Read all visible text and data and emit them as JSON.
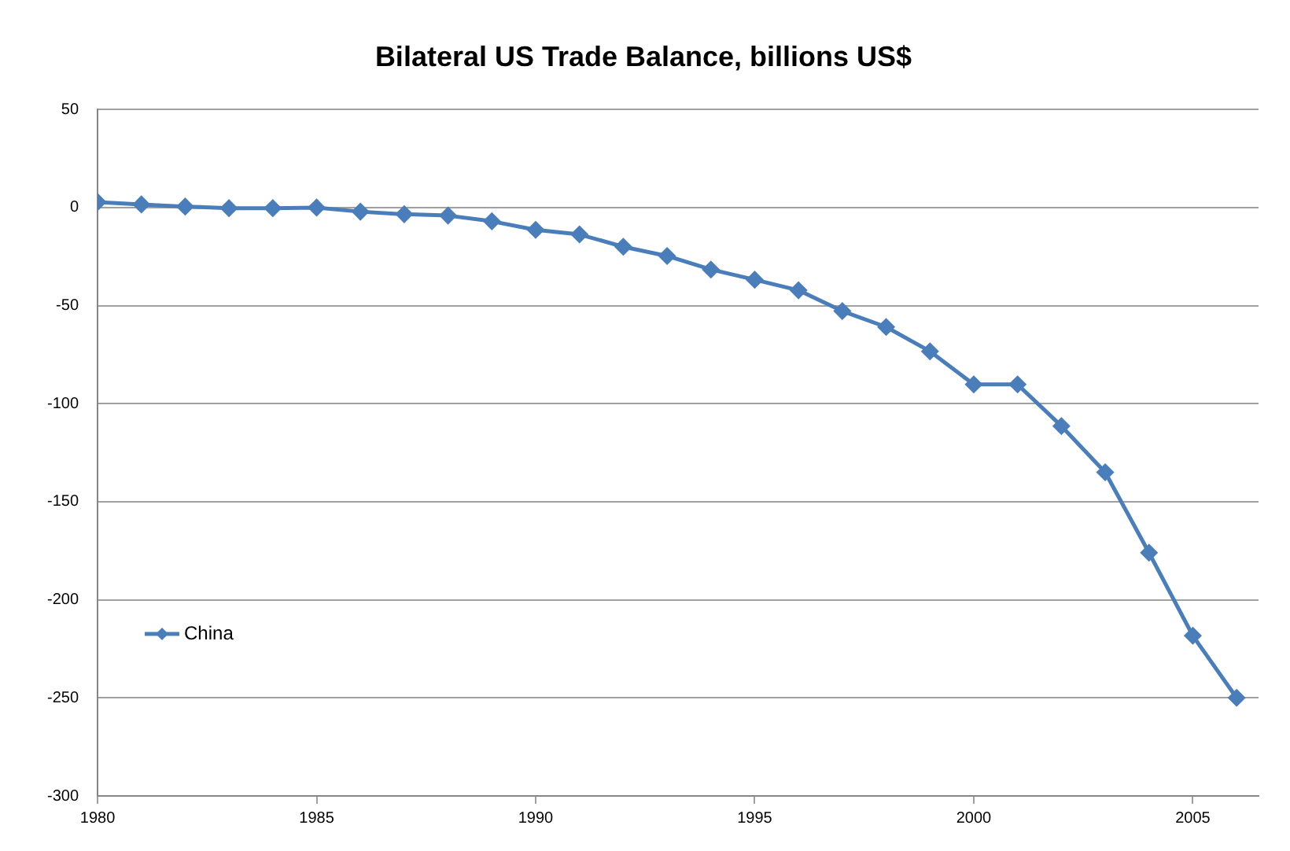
{
  "chart_data": {
    "type": "line",
    "title": "Bilateral US Trade Balance, billions US$",
    "x": [
      1980,
      1981,
      1982,
      1983,
      1984,
      1985,
      1986,
      1987,
      1988,
      1989,
      1990,
      1991,
      1992,
      1993,
      1994,
      1995,
      1996,
      1997,
      1998,
      1999,
      2000,
      2001,
      2002,
      2003,
      2004,
      2005,
      2006
    ],
    "series": [
      {
        "name": "China",
        "color": "#4a7ebb",
        "values": [
          2.8,
          1.6,
          0.5,
          -0.3,
          -0.3,
          0,
          -2.1,
          -3.4,
          -4.1,
          -7,
          -11.4,
          -13.7,
          -20,
          -24.7,
          -31.6,
          -36.8,
          -42.2,
          -52.8,
          -60.9,
          -73.3,
          -90.2,
          -90.2,
          -111.4,
          -135,
          -176,
          -218.3,
          -250
        ]
      }
    ],
    "xlim": [
      1980,
      2006.5
    ],
    "xticks": [
      1980,
      1985,
      1990,
      1995,
      2000,
      2005
    ],
    "ylim": [
      -300,
      50
    ],
    "yticks": [
      -300,
      -250,
      -200,
      -150,
      -100,
      -50,
      0,
      50
    ],
    "grid": "y",
    "legend": "bottom left",
    "marker": "diamond",
    "line_style": "solid"
  }
}
